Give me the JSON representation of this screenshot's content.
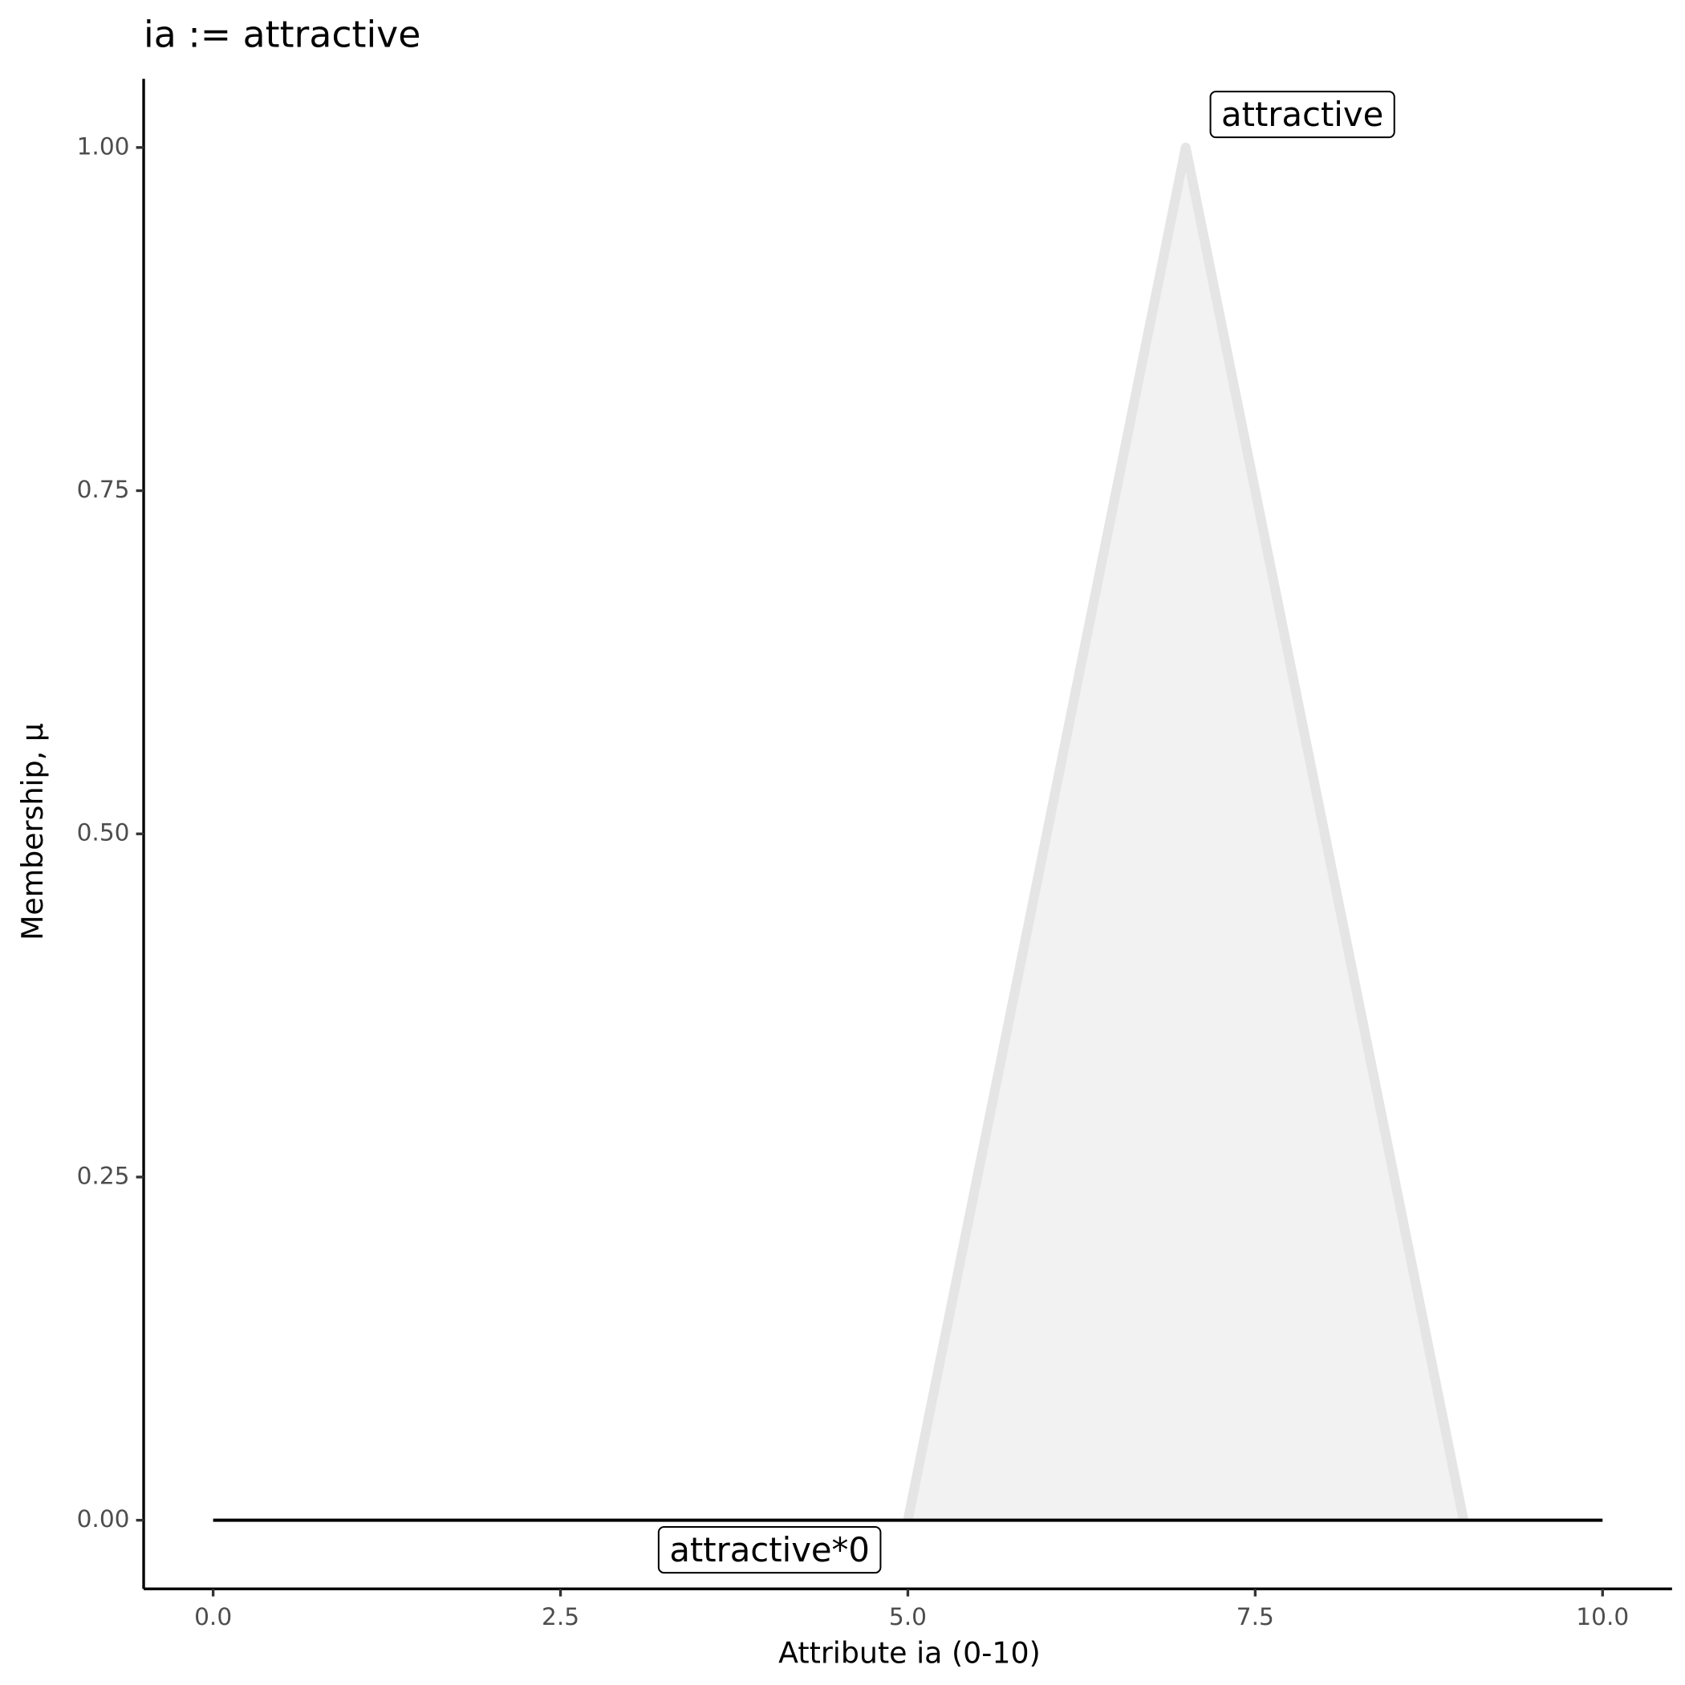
{
  "chart_data": {
    "type": "line",
    "title": "ia := attractive",
    "x_label": "Attribute ia (0-10)",
    "y_label": "Membership, μ",
    "xlim": [
      -0.5,
      10.5
    ],
    "ylim": [
      -0.05,
      1.05
    ],
    "xticks": [
      {
        "value": 0,
        "label": "0.0"
      },
      2.5,
      {
        "value": 5,
        "label": "5.0"
      },
      7.5,
      {
        "value": 10,
        "label": "10.0"
      }
    ],
    "yticks": [
      {
        "value": 0,
        "label": "0.00"
      },
      {
        "value": 0.25,
        "label": "0.25"
      },
      {
        "value": 0.5,
        "label": "0.50"
      },
      {
        "value": 0.75,
        "label": "0.75"
      },
      {
        "value": 1,
        "label": "1.00"
      }
    ],
    "grid": false,
    "series": [
      {
        "name": "attractive",
        "color": "#e5e5e5",
        "fill": "#f2f2f2",
        "x": [
          5,
          7,
          9
        ],
        "values": [
          0,
          1,
          0
        ]
      },
      {
        "name": "attractive*0",
        "color": "#000000",
        "x": [
          0,
          10
        ],
        "values": [
          0,
          0
        ]
      }
    ]
  }
}
